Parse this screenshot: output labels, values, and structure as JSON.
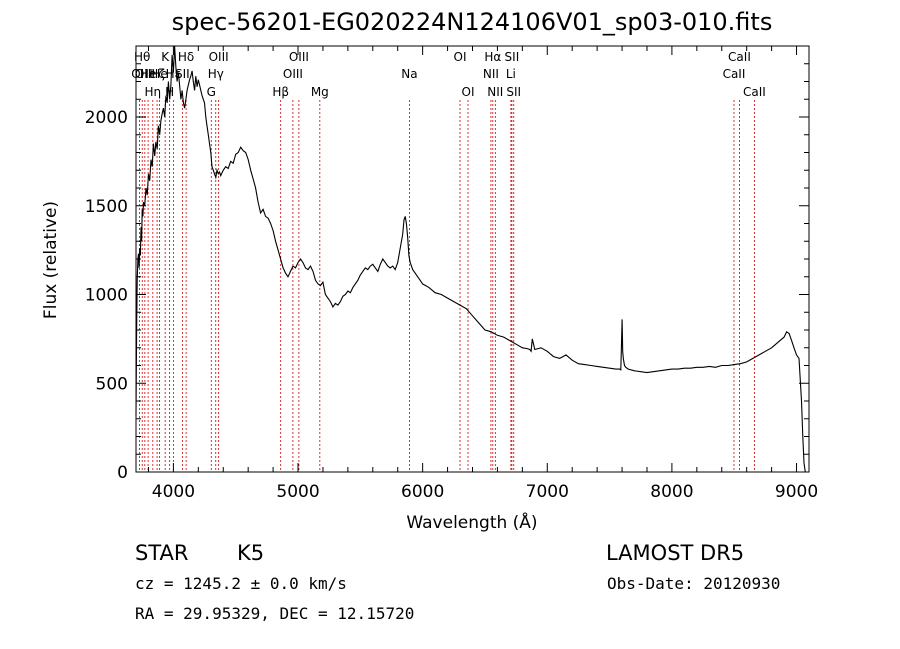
{
  "chart_data": {
    "type": "line",
    "title": "spec-56201-EG020224N124106V01_sp03-010.fits",
    "xlabel": "Wavelength (Å)",
    "ylabel": "Flux (relative)",
    "xlim": [
      3700,
      9100
    ],
    "ylim": [
      0,
      2400
    ],
    "xticks": [
      4000,
      5000,
      6000,
      7000,
      8000,
      9000
    ],
    "yticks": [
      0,
      500,
      1000,
      1500,
      2000
    ],
    "grid": false,
    "series": [
      {
        "color": "#000000",
        "x": [
          3700,
          3705,
          3710,
          3715,
          3720,
          3725,
          3730,
          3735,
          3740,
          3745,
          3750,
          3755,
          3760,
          3770,
          3780,
          3790,
          3800,
          3810,
          3820,
          3830,
          3840,
          3850,
          3860,
          3870,
          3880,
          3890,
          3900,
          3910,
          3920,
          3930,
          3940,
          3950,
          3960,
          3970,
          3980,
          3990,
          4000,
          4010,
          4020,
          4030,
          4040,
          4050,
          4060,
          4070,
          4080,
          4090,
          4100,
          4110,
          4120,
          4130,
          4140,
          4150,
          4160,
          4170,
          4180,
          4190,
          4200,
          4210,
          4220,
          4230,
          4240,
          4250,
          4260,
          4270,
          4280,
          4290,
          4300,
          4310,
          4320,
          4330,
          4340,
          4350,
          4360,
          4370,
          4380,
          4400,
          4420,
          4440,
          4460,
          4480,
          4500,
          4520,
          4540,
          4560,
          4580,
          4600,
          4620,
          4640,
          4660,
          4680,
          4700,
          4720,
          4740,
          4760,
          4780,
          4800,
          4820,
          4840,
          4860,
          4880,
          4900,
          4920,
          4940,
          4960,
          4980,
          5000,
          5020,
          5040,
          5060,
          5080,
          5100,
          5120,
          5140,
          5160,
          5180,
          5200,
          5220,
          5240,
          5260,
          5280,
          5300,
          5320,
          5340,
          5360,
          5380,
          5400,
          5420,
          5440,
          5460,
          5480,
          5500,
          5520,
          5540,
          5560,
          5580,
          5600,
          5620,
          5640,
          5660,
          5680,
          5700,
          5720,
          5740,
          5760,
          5780,
          5800,
          5820,
          5840,
          5850,
          5860,
          5870,
          5880,
          5890,
          5900,
          5920,
          5940,
          5960,
          5980,
          6000,
          6050,
          6100,
          6150,
          6200,
          6250,
          6300,
          6350,
          6400,
          6450,
          6500,
          6550,
          6600,
          6650,
          6700,
          6750,
          6800,
          6840,
          6860,
          6870,
          6880,
          6900,
          6950,
          7000,
          7050,
          7100,
          7150,
          7200,
          7250,
          7300,
          7350,
          7400,
          7450,
          7500,
          7550,
          7580,
          7590,
          7595,
          7600,
          7605,
          7610,
          7615,
          7620,
          7630,
          7650,
          7700,
          7750,
          7800,
          7850,
          7900,
          7950,
          8000,
          8050,
          8100,
          8150,
          8200,
          8250,
          8300,
          8350,
          8400,
          8450,
          8500,
          8550,
          8600,
          8650,
          8700,
          8750,
          8800,
          8850,
          8900,
          8920,
          8940,
          8960,
          8980,
          9000,
          9020,
          9040,
          9050,
          9060,
          9070
        ],
        "y": [
          320,
          780,
          1080,
          1200,
          1230,
          1150,
          1260,
          1220,
          1380,
          1300,
          1480,
          1440,
          1520,
          1500,
          1600,
          1560,
          1680,
          1640,
          1760,
          1720,
          1850,
          1780,
          1860,
          1820,
          1950,
          1900,
          1980,
          2020,
          2050,
          2000,
          2120,
          2080,
          2200,
          2100,
          2180,
          2350,
          2250,
          2400,
          2280,
          2200,
          2250,
          2180,
          2100,
          2150,
          2080,
          2050,
          2100,
          2150,
          2180,
          2210,
          2230,
          2260,
          2200,
          2150,
          2230,
          2170,
          2210,
          2180,
          2150,
          2120,
          2100,
          2080,
          2000,
          1950,
          1900,
          1850,
          1800,
          1720,
          1700,
          1680,
          1660,
          1700,
          1680,
          1690,
          1670,
          1700,
          1720,
          1710,
          1750,
          1740,
          1790,
          1800,
          1830,
          1810,
          1800,
          1760,
          1700,
          1650,
          1600,
          1520,
          1460,
          1480,
          1440,
          1430,
          1400,
          1360,
          1300,
          1250,
          1200,
          1150,
          1120,
          1100,
          1130,
          1160,
          1150,
          1180,
          1200,
          1180,
          1150,
          1140,
          1160,
          1130,
          1080,
          1060,
          1050,
          1070,
          1000,
          980,
          960,
          930,
          950,
          940,
          960,
          990,
          1000,
          1020,
          1010,
          1040,
          1060,
          1080,
          1110,
          1130,
          1150,
          1140,
          1160,
          1170,
          1150,
          1130,
          1170,
          1200,
          1180,
          1160,
          1150,
          1160,
          1140,
          1180,
          1260,
          1340,
          1420,
          1440,
          1400,
          1320,
          1220,
          1180,
          1140,
          1120,
          1100,
          1080,
          1060,
          1040,
          1010,
          1000,
          980,
          960,
          940,
          920,
          880,
          840,
          800,
          790,
          770,
          760,
          740,
          720,
          700,
          695,
          690,
          680,
          750,
          690,
          700,
          680,
          650,
          640,
          660,
          630,
          610,
          605,
          600,
          595,
          590,
          585,
          580,
          580,
          575,
          700,
          860,
          680,
          640,
          620,
          600,
          590,
          580,
          570,
          565,
          560,
          565,
          570,
          575,
          580,
          580,
          585,
          585,
          590,
          590,
          595,
          590,
          600,
          600,
          605,
          610,
          620,
          640,
          660,
          680,
          700,
          730,
          760,
          790,
          780,
          740,
          700,
          660,
          640,
          400,
          200,
          50,
          0
        ]
      }
    ],
    "lines": [
      {
        "x": 3728,
        "label": "OII",
        "row": 2
      },
      {
        "x": 3750,
        "label": "Hθ",
        "row": 1
      },
      {
        "x": 3771,
        "label": "OIII",
        "row": 2
      },
      {
        "x": 3797,
        "label": "He",
        "row": 2
      },
      {
        "x": 3835,
        "label": "Hη",
        "row": 3
      },
      {
        "x": 3869,
        "label": "Hζ",
        "row": 2
      },
      {
        "x": 3889,
        "label": "He",
        "row": 2
      },
      {
        "x": 3934,
        "label": "K",
        "row": 1
      },
      {
        "x": 3970,
        "label": "H",
        "row": 3
      },
      {
        "x": 4000,
        "label": "Hε",
        "row": 2
      },
      {
        "x": 4072,
        "label": "SII",
        "row": 2
      },
      {
        "x": 4102,
        "label": "Hδ",
        "row": 1
      },
      {
        "x": 4304,
        "label": "G",
        "row": 3
      },
      {
        "x": 4340,
        "label": "Hγ",
        "row": 2
      },
      {
        "x": 4363,
        "label": "OIII",
        "row": 1
      },
      {
        "x": 4861,
        "label": "Hβ",
        "row": 3
      },
      {
        "x": 4959,
        "label": "OIII",
        "row": 2
      },
      {
        "x": 5007,
        "label": "OIII",
        "row": 1
      },
      {
        "x": 5175,
        "label": "Mg",
        "row": 3
      },
      {
        "x": 5894,
        "label": "Na",
        "row": 2
      },
      {
        "x": 6300,
        "label": "OI",
        "row": 1
      },
      {
        "x": 6364,
        "label": "OI",
        "row": 3
      },
      {
        "x": 6548,
        "label": "NII",
        "row": 2
      },
      {
        "x": 6563,
        "label": "Hα",
        "row": 1
      },
      {
        "x": 6583,
        "label": "NII",
        "row": 3
      },
      {
        "x": 6708,
        "label": "Li",
        "row": 2
      },
      {
        "x": 6716,
        "label": "SII",
        "row": 1
      },
      {
        "x": 6731,
        "label": "SII",
        "row": 3
      },
      {
        "x": 8498,
        "label": "CaII",
        "row": 2
      },
      {
        "x": 8542,
        "label": "CaII",
        "row": 1
      },
      {
        "x": 8662,
        "label": "CaII",
        "row": 3
      }
    ]
  },
  "footer": {
    "class_label": "STAR",
    "subclass": "K5",
    "survey": "LAMOST  DR5",
    "redshift_text": "cz = 1245.2 ± 0.0 km/s",
    "date_text": "Obs-Date: 20120930",
    "coords_text": "RA =  29.95329, DEC =  12.15720"
  }
}
